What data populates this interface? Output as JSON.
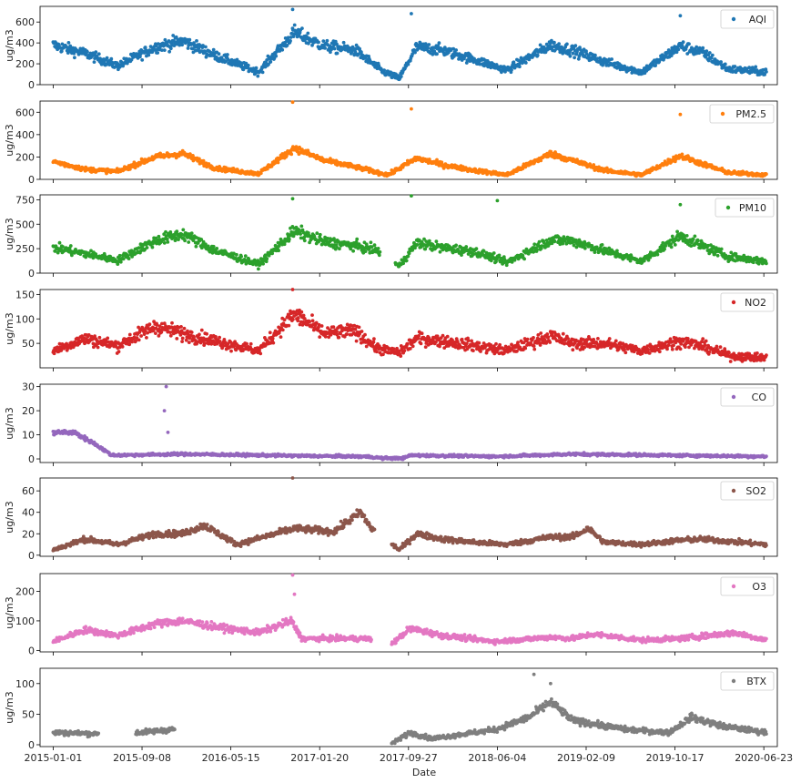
{
  "chart_data": {
    "type": "scatter",
    "xlabel": "Date",
    "x_ticks": [
      "2015-01-01",
      "2015-09-08",
      "2016-05-15",
      "2017-01-20",
      "2017-09-27",
      "2018-06-04",
      "2019-02-09",
      "2019-10-17",
      "2020-06-23"
    ],
    "x_range": [
      "2014-11-25",
      "2020-07-31"
    ],
    "ylabel": "ug/m3",
    "legend_position": "upper right",
    "grid": false,
    "panels": [
      {
        "name": "AQI",
        "color": "#1f77b4",
        "ylim": [
          0,
          750
        ],
        "yticks": [
          0,
          200,
          400,
          600
        ],
        "anchors": [
          [
            "2015-01-01",
            380
          ],
          [
            "2015-04-01",
            300
          ],
          [
            "2015-07-01",
            180
          ],
          [
            "2015-10-15",
            360
          ],
          [
            "2016-01-01",
            420
          ],
          [
            "2016-04-01",
            280
          ],
          [
            "2016-08-01",
            120
          ],
          [
            "2016-11-10",
            500
          ],
          [
            "2017-02-01",
            370
          ],
          [
            "2017-05-01",
            330
          ],
          [
            "2017-07-15",
            130
          ],
          [
            "2017-09-01",
            60
          ],
          [
            "2017-10-20",
            360
          ],
          [
            "2018-01-01",
            330
          ],
          [
            "2018-04-01",
            240
          ],
          [
            "2018-07-01",
            140
          ],
          [
            "2018-11-01",
            380
          ],
          [
            "2019-01-01",
            330
          ],
          [
            "2019-04-01",
            220
          ],
          [
            "2019-07-15",
            120
          ],
          [
            "2019-11-01",
            370
          ],
          [
            "2020-01-01",
            310
          ],
          [
            "2020-03-15",
            150
          ],
          [
            "2020-06-30",
            120
          ]
        ],
        "noise": 55,
        "spikes": [
          [
            "2016-11-05",
            720
          ],
          [
            "2017-10-05",
            680
          ],
          [
            "2019-11-01",
            660
          ]
        ],
        "gaps": []
      },
      {
        "name": "PM2.5",
        "color": "#ff7f0e",
        "ylim": [
          0,
          700
        ],
        "yticks": [
          0,
          200,
          400,
          600
        ],
        "anchors": [
          [
            "2015-01-01",
            160
          ],
          [
            "2015-04-01",
            90
          ],
          [
            "2015-07-01",
            70
          ],
          [
            "2015-10-15",
            200
          ],
          [
            "2016-01-01",
            230
          ],
          [
            "2016-04-01",
            100
          ],
          [
            "2016-08-01",
            50
          ],
          [
            "2016-11-10",
            280
          ],
          [
            "2017-02-01",
            170
          ],
          [
            "2017-05-01",
            110
          ],
          [
            "2017-08-01",
            40
          ],
          [
            "2017-10-20",
            190
          ],
          [
            "2018-01-01",
            130
          ],
          [
            "2018-04-01",
            80
          ],
          [
            "2018-07-01",
            40
          ],
          [
            "2018-11-01",
            230
          ],
          [
            "2019-01-01",
            170
          ],
          [
            "2019-04-01",
            80
          ],
          [
            "2019-07-15",
            40
          ],
          [
            "2019-11-01",
            210
          ],
          [
            "2020-01-01",
            140
          ],
          [
            "2020-03-15",
            60
          ],
          [
            "2020-06-30",
            40
          ]
        ],
        "noise": 35,
        "spikes": [
          [
            "2016-11-05",
            690
          ],
          [
            "2017-10-05",
            630
          ],
          [
            "2019-11-01",
            580
          ]
        ],
        "gaps": []
      },
      {
        "name": "PM10",
        "color": "#2ca02c",
        "ylim": [
          0,
          800
        ],
        "yticks": [
          0,
          250,
          500,
          750
        ],
        "anchors": [
          [
            "2015-01-01",
            260
          ],
          [
            "2015-04-01",
            200
          ],
          [
            "2015-07-01",
            130
          ],
          [
            "2015-10-15",
            330
          ],
          [
            "2016-01-01",
            400
          ],
          [
            "2016-04-01",
            230
          ],
          [
            "2016-08-01",
            90
          ],
          [
            "2016-11-10",
            430
          ],
          [
            "2017-02-01",
            320
          ],
          [
            "2017-05-01",
            280
          ],
          [
            "2017-07-01",
            230
          ],
          [
            "2017-09-01",
            70
          ],
          [
            "2017-10-20",
            310
          ],
          [
            "2018-01-01",
            260
          ],
          [
            "2018-04-01",
            220
          ],
          [
            "2018-07-01",
            110
          ],
          [
            "2018-11-01",
            340
          ],
          [
            "2019-01-01",
            330
          ],
          [
            "2019-04-01",
            230
          ],
          [
            "2019-07-15",
            120
          ],
          [
            "2019-11-01",
            380
          ],
          [
            "2020-01-01",
            280
          ],
          [
            "2020-03-15",
            170
          ],
          [
            "2020-06-30",
            120
          ]
        ],
        "noise": 60,
        "spikes": [
          [
            "2016-11-05",
            760
          ],
          [
            "2017-10-05",
            790
          ],
          [
            "2018-06-04",
            740
          ],
          [
            "2019-11-01",
            700
          ]
        ],
        "gaps": [
          [
            "2017-07-10",
            "2017-08-20"
          ]
        ]
      },
      {
        "name": "NO2",
        "color": "#d62728",
        "ylim": [
          0,
          160
        ],
        "yticks": [
          50,
          100,
          150
        ],
        "anchors": [
          [
            "2015-01-01",
            35
          ],
          [
            "2015-04-01",
            60
          ],
          [
            "2015-07-01",
            45
          ],
          [
            "2015-10-15",
            85
          ],
          [
            "2016-01-01",
            70
          ],
          [
            "2016-04-01",
            55
          ],
          [
            "2016-08-01",
            35
          ],
          [
            "2016-11-10",
            110
          ],
          [
            "2017-02-01",
            70
          ],
          [
            "2017-05-01",
            75
          ],
          [
            "2017-07-01",
            40
          ],
          [
            "2017-09-01",
            30
          ],
          [
            "2017-10-20",
            60
          ],
          [
            "2018-01-01",
            55
          ],
          [
            "2018-04-01",
            45
          ],
          [
            "2018-07-01",
            35
          ],
          [
            "2018-11-01",
            65
          ],
          [
            "2019-01-01",
            50
          ],
          [
            "2019-04-01",
            50
          ],
          [
            "2019-07-15",
            35
          ],
          [
            "2019-11-01",
            55
          ],
          [
            "2020-01-01",
            45
          ],
          [
            "2020-03-15",
            25
          ],
          [
            "2020-06-30",
            20
          ]
        ],
        "noise": 15,
        "spikes": [
          [
            "2016-11-05",
            160
          ]
        ],
        "gaps": []
      },
      {
        "name": "CO",
        "color": "#9467bd",
        "ylim": [
          -1.5,
          31
        ],
        "yticks": [
          0,
          10,
          20,
          30
        ],
        "anchors": [
          [
            "2015-01-01",
            11
          ],
          [
            "2015-03-01",
            11
          ],
          [
            "2015-05-01",
            6
          ],
          [
            "2015-06-15",
            1.5
          ],
          [
            "2016-01-01",
            2
          ],
          [
            "2017-01-01",
            1.2
          ],
          [
            "2017-06-01",
            1
          ],
          [
            "2017-07-15",
            0.3
          ],
          [
            "2017-09-15",
            0.3
          ],
          [
            "2017-10-01",
            1.5
          ],
          [
            "2018-06-01",
            1
          ],
          [
            "2019-01-01",
            2
          ],
          [
            "2020-06-30",
            1
          ]
        ],
        "noise": 1.2,
        "spikes": [
          [
            "2015-11-15",
            30
          ],
          [
            "2015-11-10",
            20
          ],
          [
            "2015-11-20",
            11
          ]
        ],
        "gaps": []
      },
      {
        "name": "SO2",
        "color": "#8c564b",
        "ylim": [
          -1,
          72
        ],
        "yticks": [
          0,
          20,
          40,
          60
        ],
        "anchors": [
          [
            "2015-01-01",
            5
          ],
          [
            "2015-04-01",
            15
          ],
          [
            "2015-07-01",
            10
          ],
          [
            "2015-10-15",
            20
          ],
          [
            "2016-01-01",
            20
          ],
          [
            "2016-03-01",
            28
          ],
          [
            "2016-06-01",
            10
          ],
          [
            "2016-11-10",
            25
          ],
          [
            "2017-03-01",
            22
          ],
          [
            "2017-05-15",
            40
          ],
          [
            "2017-06-15",
            25
          ],
          [
            "2017-09-01",
            5
          ],
          [
            "2017-10-20",
            20
          ],
          [
            "2018-01-01",
            15
          ],
          [
            "2018-04-01",
            12
          ],
          [
            "2018-07-01",
            10
          ],
          [
            "2018-11-01",
            17
          ],
          [
            "2019-01-01",
            17
          ],
          [
            "2019-02-15",
            25
          ],
          [
            "2019-04-01",
            12
          ],
          [
            "2019-07-15",
            10
          ],
          [
            "2019-11-01",
            14
          ],
          [
            "2020-01-01",
            15
          ],
          [
            "2020-06-30",
            10
          ]
        ],
        "noise": 4,
        "spikes": [
          [
            "2016-11-05",
            72
          ]
        ],
        "gaps": [
          [
            "2017-06-25",
            "2017-08-10"
          ]
        ]
      },
      {
        "name": "O3",
        "color": "#e377c2",
        "ylim": [
          -5,
          260
        ],
        "yticks": [
          0,
          100,
          200
        ],
        "anchors": [
          [
            "2015-01-01",
            30
          ],
          [
            "2015-04-01",
            70
          ],
          [
            "2015-07-01",
            50
          ],
          [
            "2015-10-15",
            90
          ],
          [
            "2016-01-01",
            100
          ],
          [
            "2016-04-01",
            80
          ],
          [
            "2016-08-01",
            60
          ],
          [
            "2016-11-01",
            100
          ],
          [
            "2016-12-01",
            40
          ],
          [
            "2017-06-01",
            40
          ],
          [
            "2017-08-15",
            25
          ],
          [
            "2017-10-01",
            75
          ],
          [
            "2018-01-01",
            50
          ],
          [
            "2018-06-01",
            30
          ],
          [
            "2018-11-01",
            45
          ],
          [
            "2019-01-01",
            40
          ],
          [
            "2019-03-01",
            55
          ],
          [
            "2019-07-15",
            35
          ],
          [
            "2019-11-01",
            40
          ],
          [
            "2020-04-01",
            60
          ],
          [
            "2020-06-30",
            35
          ]
        ],
        "noise": 15,
        "spikes": [
          [
            "2016-11-05",
            255
          ],
          [
            "2016-11-10",
            190
          ]
        ],
        "gaps": [
          [
            "2017-06-15",
            "2017-08-10"
          ]
        ]
      },
      {
        "name": "BTX",
        "color": "#7f7f7f",
        "ylim": [
          -3,
          125
        ],
        "yticks": [
          0,
          50,
          100
        ],
        "anchors": [
          [
            "2015-01-01",
            20
          ],
          [
            "2015-05-01",
            18
          ],
          [
            "2015-09-01",
            20
          ],
          [
            "2015-11-30",
            25
          ],
          [
            "2017-08-15",
            3
          ],
          [
            "2017-10-01",
            20
          ],
          [
            "2017-12-01",
            10
          ],
          [
            "2018-06-01",
            25
          ],
          [
            "2018-09-01",
            45
          ],
          [
            "2018-11-01",
            70
          ],
          [
            "2019-01-01",
            40
          ],
          [
            "2019-06-01",
            25
          ],
          [
            "2019-10-01",
            20
          ],
          [
            "2019-12-01",
            45
          ],
          [
            "2020-03-01",
            30
          ],
          [
            "2020-06-30",
            20
          ]
        ],
        "noise": 7,
        "spikes": [
          [
            "2018-09-15",
            115
          ],
          [
            "2018-11-01",
            100
          ]
        ],
        "gaps": [
          [
            "2015-05-10",
            "2015-08-20"
          ],
          [
            "2015-12-10",
            "2017-08-10"
          ]
        ]
      }
    ]
  }
}
